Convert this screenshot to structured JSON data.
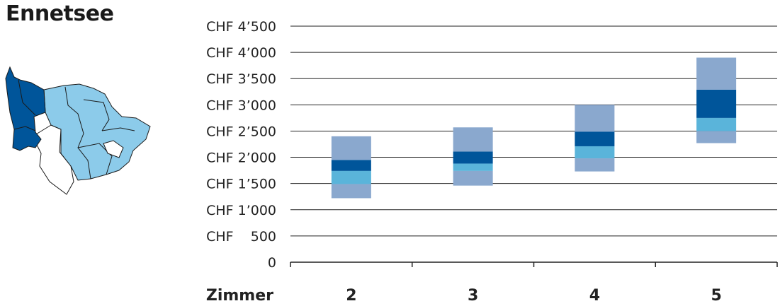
{
  "title": "Ennetsee",
  "colors": {
    "band_outer": "#8aa8ce",
    "band_mid": "#5ab4da",
    "band_median": "#00559a",
    "map_highlight": "#00559a",
    "map_region": "#8ccbea",
    "map_other": "#ffffff",
    "gridline": "#222222"
  },
  "map": {
    "icon": "region-map-icon"
  },
  "chart_data": {
    "type": "bar",
    "subtype": "range-bands",
    "x_name": "Zimmer",
    "categories": [
      "2",
      "3",
      "4",
      "5"
    ],
    "ytick_labels": [
      "0",
      "CHF    500",
      "CHF 1’000",
      "CHF 1’500",
      "CHF 2’000",
      "CHF 2’500",
      "CHF 3’000",
      "CHF 3’500",
      "CHF 4’000",
      "CHF 4’500"
    ],
    "yticks": [
      0,
      500,
      1000,
      1500,
      2000,
      2500,
      3000,
      3500,
      4000,
      4500
    ],
    "ylim": [
      0,
      4500
    ],
    "grid": true,
    "boxes": [
      {
        "category": "2",
        "min": 1220,
        "p25": 1490,
        "median_low": 1740,
        "median_high": 1950,
        "p75": 2400
      },
      {
        "category": "3",
        "min": 1460,
        "p25": 1740,
        "median_low": 1880,
        "median_high": 2110,
        "p75": 2570
      },
      {
        "category": "4",
        "min": 1730,
        "p25": 1980,
        "median_low": 2210,
        "median_high": 2490,
        "p75": 3000
      },
      {
        "category": "5",
        "min": 2270,
        "p25": 2500,
        "median_low": 2750,
        "median_high": 3290,
        "p75": 3900
      }
    ]
  }
}
